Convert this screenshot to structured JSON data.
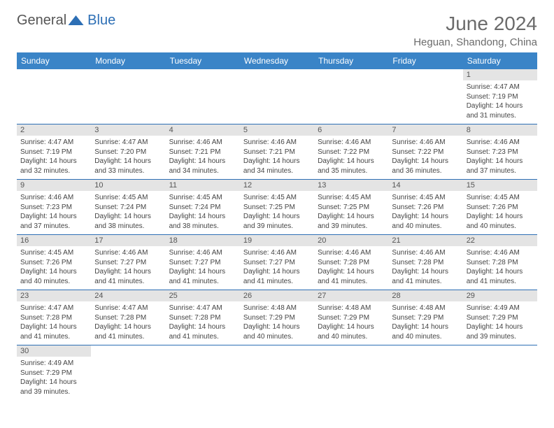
{
  "branding": {
    "logo_part1": "General",
    "logo_part2": "Blue"
  },
  "title": "June 2024",
  "location": "Heguan, Shandong, China",
  "colors": {
    "header_bg": "#3a84c7",
    "header_text": "#ffffff",
    "daynum_bg": "#e4e4e4",
    "cell_border": "#2d6fb5",
    "body_text": "#444444",
    "title_text": "#6b6b6b"
  },
  "day_headers": [
    "Sunday",
    "Monday",
    "Tuesday",
    "Wednesday",
    "Thursday",
    "Friday",
    "Saturday"
  ],
  "weeks": [
    [
      null,
      null,
      null,
      null,
      null,
      null,
      {
        "n": "1",
        "sunrise": "Sunrise: 4:47 AM",
        "sunset": "Sunset: 7:19 PM",
        "daylight": "Daylight: 14 hours and 31 minutes."
      }
    ],
    [
      {
        "n": "2",
        "sunrise": "Sunrise: 4:47 AM",
        "sunset": "Sunset: 7:19 PM",
        "daylight": "Daylight: 14 hours and 32 minutes."
      },
      {
        "n": "3",
        "sunrise": "Sunrise: 4:47 AM",
        "sunset": "Sunset: 7:20 PM",
        "daylight": "Daylight: 14 hours and 33 minutes."
      },
      {
        "n": "4",
        "sunrise": "Sunrise: 4:46 AM",
        "sunset": "Sunset: 7:21 PM",
        "daylight": "Daylight: 14 hours and 34 minutes."
      },
      {
        "n": "5",
        "sunrise": "Sunrise: 4:46 AM",
        "sunset": "Sunset: 7:21 PM",
        "daylight": "Daylight: 14 hours and 34 minutes."
      },
      {
        "n": "6",
        "sunrise": "Sunrise: 4:46 AM",
        "sunset": "Sunset: 7:22 PM",
        "daylight": "Daylight: 14 hours and 35 minutes."
      },
      {
        "n": "7",
        "sunrise": "Sunrise: 4:46 AM",
        "sunset": "Sunset: 7:22 PM",
        "daylight": "Daylight: 14 hours and 36 minutes."
      },
      {
        "n": "8",
        "sunrise": "Sunrise: 4:46 AM",
        "sunset": "Sunset: 7:23 PM",
        "daylight": "Daylight: 14 hours and 37 minutes."
      }
    ],
    [
      {
        "n": "9",
        "sunrise": "Sunrise: 4:46 AM",
        "sunset": "Sunset: 7:23 PM",
        "daylight": "Daylight: 14 hours and 37 minutes."
      },
      {
        "n": "10",
        "sunrise": "Sunrise: 4:45 AM",
        "sunset": "Sunset: 7:24 PM",
        "daylight": "Daylight: 14 hours and 38 minutes."
      },
      {
        "n": "11",
        "sunrise": "Sunrise: 4:45 AM",
        "sunset": "Sunset: 7:24 PM",
        "daylight": "Daylight: 14 hours and 38 minutes."
      },
      {
        "n": "12",
        "sunrise": "Sunrise: 4:45 AM",
        "sunset": "Sunset: 7:25 PM",
        "daylight": "Daylight: 14 hours and 39 minutes."
      },
      {
        "n": "13",
        "sunrise": "Sunrise: 4:45 AM",
        "sunset": "Sunset: 7:25 PM",
        "daylight": "Daylight: 14 hours and 39 minutes."
      },
      {
        "n": "14",
        "sunrise": "Sunrise: 4:45 AM",
        "sunset": "Sunset: 7:26 PM",
        "daylight": "Daylight: 14 hours and 40 minutes."
      },
      {
        "n": "15",
        "sunrise": "Sunrise: 4:45 AM",
        "sunset": "Sunset: 7:26 PM",
        "daylight": "Daylight: 14 hours and 40 minutes."
      }
    ],
    [
      {
        "n": "16",
        "sunrise": "Sunrise: 4:45 AM",
        "sunset": "Sunset: 7:26 PM",
        "daylight": "Daylight: 14 hours and 40 minutes."
      },
      {
        "n": "17",
        "sunrise": "Sunrise: 4:46 AM",
        "sunset": "Sunset: 7:27 PM",
        "daylight": "Daylight: 14 hours and 41 minutes."
      },
      {
        "n": "18",
        "sunrise": "Sunrise: 4:46 AM",
        "sunset": "Sunset: 7:27 PM",
        "daylight": "Daylight: 14 hours and 41 minutes."
      },
      {
        "n": "19",
        "sunrise": "Sunrise: 4:46 AM",
        "sunset": "Sunset: 7:27 PM",
        "daylight": "Daylight: 14 hours and 41 minutes."
      },
      {
        "n": "20",
        "sunrise": "Sunrise: 4:46 AM",
        "sunset": "Sunset: 7:28 PM",
        "daylight": "Daylight: 14 hours and 41 minutes."
      },
      {
        "n": "21",
        "sunrise": "Sunrise: 4:46 AM",
        "sunset": "Sunset: 7:28 PM",
        "daylight": "Daylight: 14 hours and 41 minutes."
      },
      {
        "n": "22",
        "sunrise": "Sunrise: 4:46 AM",
        "sunset": "Sunset: 7:28 PM",
        "daylight": "Daylight: 14 hours and 41 minutes."
      }
    ],
    [
      {
        "n": "23",
        "sunrise": "Sunrise: 4:47 AM",
        "sunset": "Sunset: 7:28 PM",
        "daylight": "Daylight: 14 hours and 41 minutes."
      },
      {
        "n": "24",
        "sunrise": "Sunrise: 4:47 AM",
        "sunset": "Sunset: 7:28 PM",
        "daylight": "Daylight: 14 hours and 41 minutes."
      },
      {
        "n": "25",
        "sunrise": "Sunrise: 4:47 AM",
        "sunset": "Sunset: 7:28 PM",
        "daylight": "Daylight: 14 hours and 41 minutes."
      },
      {
        "n": "26",
        "sunrise": "Sunrise: 4:48 AM",
        "sunset": "Sunset: 7:29 PM",
        "daylight": "Daylight: 14 hours and 40 minutes."
      },
      {
        "n": "27",
        "sunrise": "Sunrise: 4:48 AM",
        "sunset": "Sunset: 7:29 PM",
        "daylight": "Daylight: 14 hours and 40 minutes."
      },
      {
        "n": "28",
        "sunrise": "Sunrise: 4:48 AM",
        "sunset": "Sunset: 7:29 PM",
        "daylight": "Daylight: 14 hours and 40 minutes."
      },
      {
        "n": "29",
        "sunrise": "Sunrise: 4:49 AM",
        "sunset": "Sunset: 7:29 PM",
        "daylight": "Daylight: 14 hours and 39 minutes."
      }
    ],
    [
      {
        "n": "30",
        "sunrise": "Sunrise: 4:49 AM",
        "sunset": "Sunset: 7:29 PM",
        "daylight": "Daylight: 14 hours and 39 minutes."
      },
      null,
      null,
      null,
      null,
      null,
      null
    ]
  ]
}
